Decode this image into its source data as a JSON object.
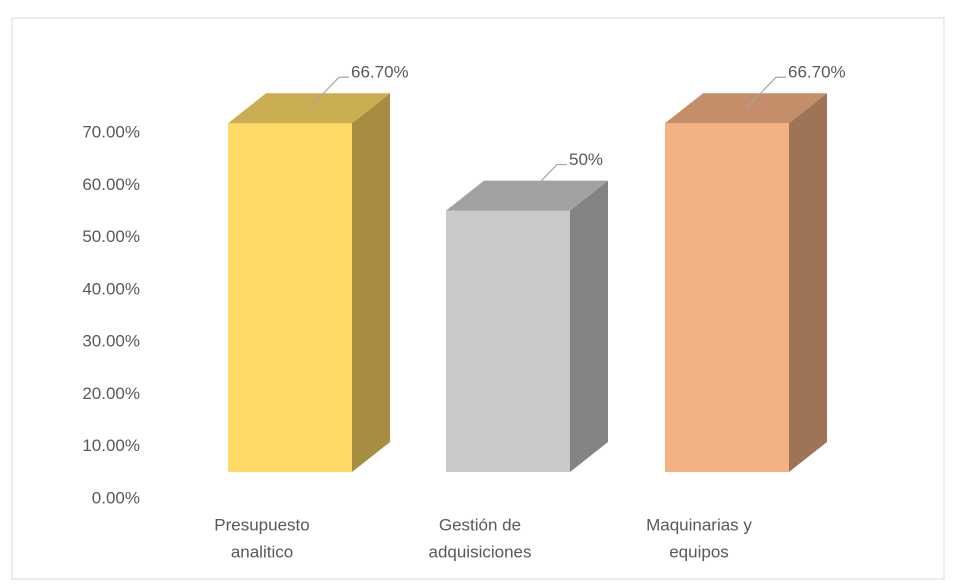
{
  "chart_data": {
    "type": "bar3d",
    "categories": [
      [
        "Presupuesto",
        "analitico"
      ],
      [
        "Gestión de",
        "adquisiciones"
      ],
      [
        "Maquinarias y",
        "equipos"
      ]
    ],
    "values": [
      66.7,
      50,
      66.7
    ],
    "value_labels": [
      "66.70%",
      "50%",
      "66.70%"
    ],
    "colors": [
      "#ffd966",
      "#c9c9c9",
      "#f4b183"
    ],
    "ylim": [
      0,
      70
    ],
    "yticks": [
      {
        "value": 0,
        "label": "0.00%"
      },
      {
        "value": 10,
        "label": "10.00%"
      },
      {
        "value": 20,
        "label": "20.00%"
      },
      {
        "value": 30,
        "label": "30.00%"
      },
      {
        "value": 40,
        "label": "40.00%"
      },
      {
        "value": 50,
        "label": "50.00%"
      },
      {
        "value": 60,
        "label": "60.00%"
      },
      {
        "value": 70,
        "label": "70.00%"
      }
    ]
  }
}
